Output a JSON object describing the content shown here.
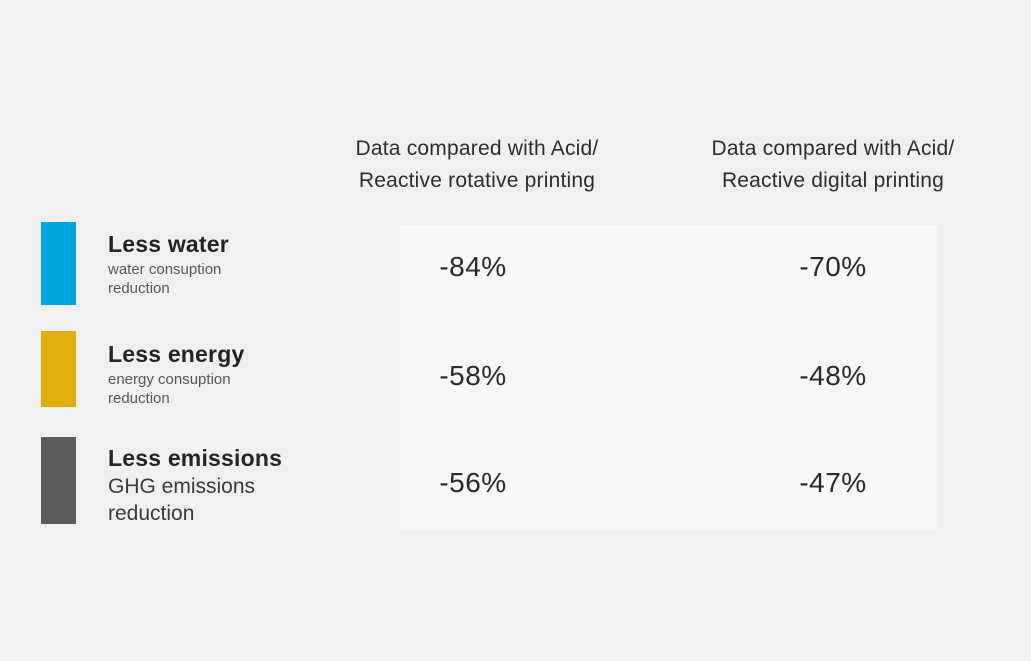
{
  "table": {
    "columns": [
      {
        "id": "rotative",
        "header": "Data compared with Acid/\nReactive rotative printing"
      },
      {
        "id": "digital",
        "header": "Data compared with Acid/\nReactive digital printing"
      }
    ],
    "rows": [
      {
        "id": "water",
        "title": "Less water",
        "subtitle": "water consuption\nreduction",
        "color": "#00a5e0",
        "values": [
          "-84%",
          "-70%"
        ]
      },
      {
        "id": "energy",
        "title": "Less energy",
        "subtitle": "energy consuption\nreduction",
        "color": "#e0ad0b",
        "values": [
          "-58%",
          "-48%"
        ]
      },
      {
        "id": "emissions",
        "title": "Less emissions",
        "subtitle": "GHG emissions\nreduction",
        "color": "#5d5c5a",
        "values": [
          "-56%",
          "-47%"
        ]
      }
    ]
  },
  "chart_data": {
    "type": "table",
    "title": "",
    "unit": "%",
    "categories": [
      "Less water (water consuption reduction)",
      "Less energy (energy consuption reduction)",
      "Less emissions (GHG emissions reduction)"
    ],
    "series": [
      {
        "name": "Data compared with Acid/Reactive rotative printing",
        "values": [
          -84,
          -58,
          -56
        ]
      },
      {
        "name": "Data compared with Acid/Reactive digital printing",
        "values": [
          -70,
          -48,
          -47
        ]
      }
    ],
    "row_colors": [
      "#00a5e0",
      "#e0ad0b",
      "#5d5c5a"
    ],
    "legend_position": "left"
  }
}
